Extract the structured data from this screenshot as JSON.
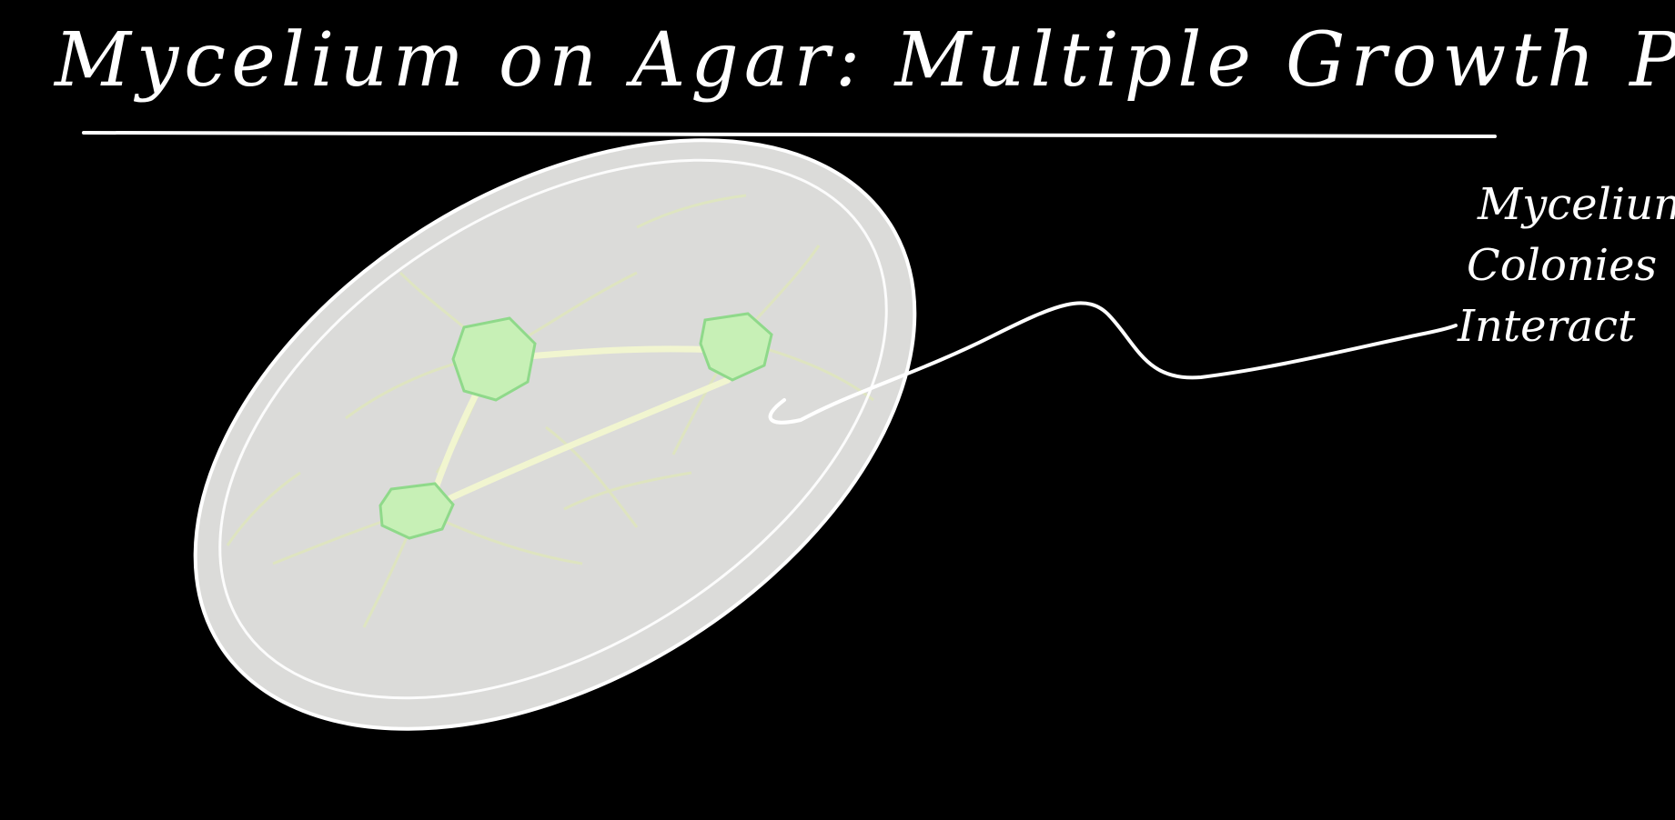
{
  "title": "Mycelium on Agar: Multiple Growth Points",
  "annotation": {
    "lines": [
      "Mycelium",
      "Colonies",
      "Interact"
    ]
  },
  "colors": {
    "background": "#000000",
    "ink": "#ffffff",
    "agar": "#e2e2e0",
    "colony": "#c7f0b6",
    "hyphae": "#dfe8b8"
  }
}
